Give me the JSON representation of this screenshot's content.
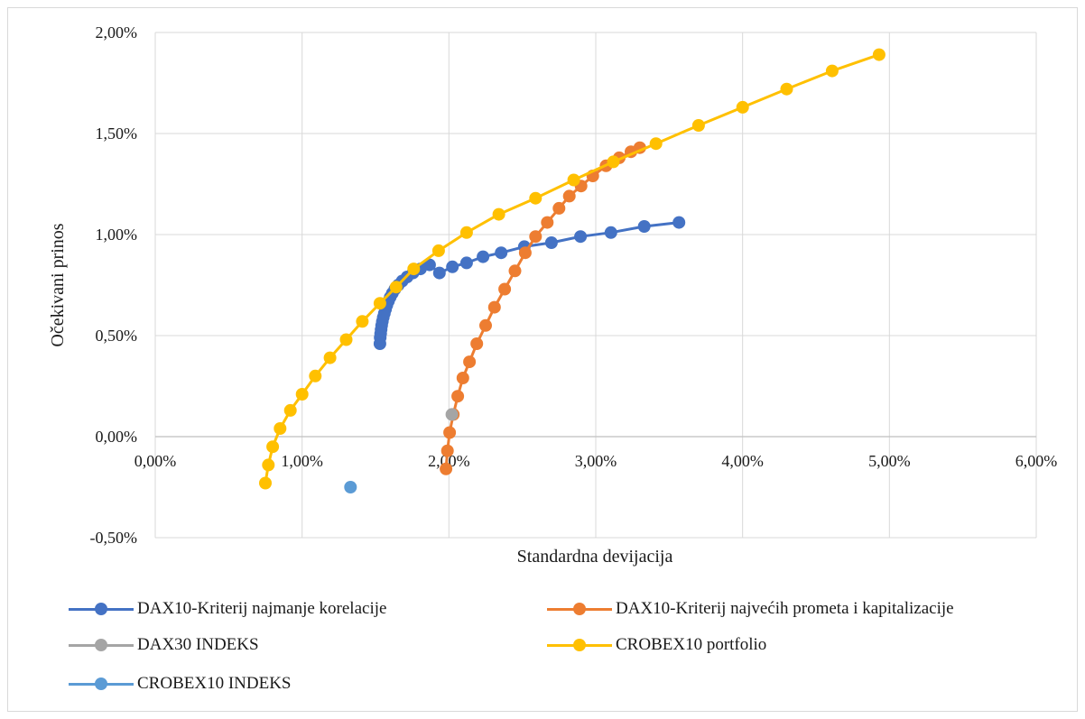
{
  "chart_data": {
    "type": "scatter",
    "xlabel": "Standardna devijacija",
    "ylabel": "Očekivani prinos",
    "xlim": [
      0,
      0.06
    ],
    "ylim": [
      -0.005,
      0.02
    ],
    "x_ticks": [
      "0,00%",
      "1,00%",
      "2,00%",
      "3,00%",
      "4,00%",
      "5,00%",
      "6,00%"
    ],
    "y_ticks": [
      "-0,50%",
      "0,00%",
      "0,50%",
      "1,00%",
      "1,50%",
      "2,00%"
    ],
    "grid": true,
    "legend_position": "bottom",
    "series": [
      {
        "name": "DAX10-Kriterij najmanje korelacije",
        "color": "#4472c4",
        "line": true,
        "points": [
          [
            0.0153,
            0.0046
          ],
          [
            0.01532,
            0.0049
          ],
          [
            0.01535,
            0.0051
          ],
          [
            0.01538,
            0.0053
          ],
          [
            0.01542,
            0.0055
          ],
          [
            0.01547,
            0.0057
          ],
          [
            0.01553,
            0.0059
          ],
          [
            0.0156,
            0.0061
          ],
          [
            0.01568,
            0.0063
          ],
          [
            0.01577,
            0.0065
          ],
          [
            0.01588,
            0.0067
          ],
          [
            0.016,
            0.0069
          ],
          [
            0.01615,
            0.0071
          ],
          [
            0.01632,
            0.0073
          ],
          [
            0.01655,
            0.0075
          ],
          [
            0.01682,
            0.0077
          ],
          [
            0.01715,
            0.0079
          ],
          [
            0.01755,
            0.0081
          ],
          [
            0.01806,
            0.0083
          ],
          [
            0.01868,
            0.0085
          ],
          [
            0.01935,
            0.0081
          ],
          [
            0.02024,
            0.0084
          ],
          [
            0.0212,
            0.0086
          ],
          [
            0.02232,
            0.0089
          ],
          [
            0.02356,
            0.0091
          ],
          [
            0.02514,
            0.0094
          ],
          [
            0.02698,
            0.0096
          ],
          [
            0.02896,
            0.0099
          ],
          [
            0.03103,
            0.0101
          ],
          [
            0.0333,
            0.0104
          ],
          [
            0.03567,
            0.0106
          ]
        ]
      },
      {
        "name": "DAX10-Kriterij najvećih prometa i kapitalizacije",
        "color": "#ed7d31",
        "line": true,
        "points": [
          [
            0.0198,
            -0.0016
          ],
          [
            0.0199,
            -0.0007
          ],
          [
            0.02005,
            0.0002
          ],
          [
            0.0203,
            0.0011
          ],
          [
            0.0206,
            0.002
          ],
          [
            0.02095,
            0.0029
          ],
          [
            0.0214,
            0.0037
          ],
          [
            0.0219,
            0.0046
          ],
          [
            0.0225,
            0.0055
          ],
          [
            0.0231,
            0.0064
          ],
          [
            0.0238,
            0.0073
          ],
          [
            0.0245,
            0.0082
          ],
          [
            0.0252,
            0.0091
          ],
          [
            0.0259,
            0.0099
          ],
          [
            0.0267,
            0.0106
          ],
          [
            0.0275,
            0.0113
          ],
          [
            0.0282,
            0.0119
          ],
          [
            0.029,
            0.0124
          ],
          [
            0.0298,
            0.0129
          ],
          [
            0.0307,
            0.0134
          ],
          [
            0.0316,
            0.0138
          ],
          [
            0.0324,
            0.0141
          ],
          [
            0.033,
            0.0143
          ]
        ]
      },
      {
        "name": "DAX30 INDEKS",
        "color": "#a5a5a5",
        "line": false,
        "points": [
          [
            0.0202,
            0.0011
          ]
        ]
      },
      {
        "name": "CROBEX10 portfolio",
        "color": "#ffc000",
        "line": true,
        "points": [
          [
            0.0075,
            -0.0023
          ],
          [
            0.0077,
            -0.0014
          ],
          [
            0.008,
            -0.0005
          ],
          [
            0.0085,
            0.0004
          ],
          [
            0.0092,
            0.0013
          ],
          [
            0.01,
            0.0021
          ],
          [
            0.0109,
            0.003
          ],
          [
            0.0119,
            0.0039
          ],
          [
            0.013,
            0.0048
          ],
          [
            0.0141,
            0.0057
          ],
          [
            0.0153,
            0.0066
          ],
          [
            0.0164,
            0.0074
          ],
          [
            0.0176,
            0.0083
          ],
          [
            0.0193,
            0.0092
          ],
          [
            0.0212,
            0.0101
          ],
          [
            0.0234,
            0.011
          ],
          [
            0.0259,
            0.0118
          ],
          [
            0.0285,
            0.0127
          ],
          [
            0.0312,
            0.0136
          ],
          [
            0.0341,
            0.0145
          ],
          [
            0.037,
            0.0154
          ],
          [
            0.04,
            0.0163
          ],
          [
            0.043,
            0.0172
          ],
          [
            0.0461,
            0.0181
          ],
          [
            0.0493,
            0.0189
          ]
        ]
      },
      {
        "name": "CROBEX10 INDEKS",
        "color": "#5b9bd5",
        "line": false,
        "points": [
          [
            0.0133,
            -0.0025
          ]
        ]
      }
    ]
  }
}
